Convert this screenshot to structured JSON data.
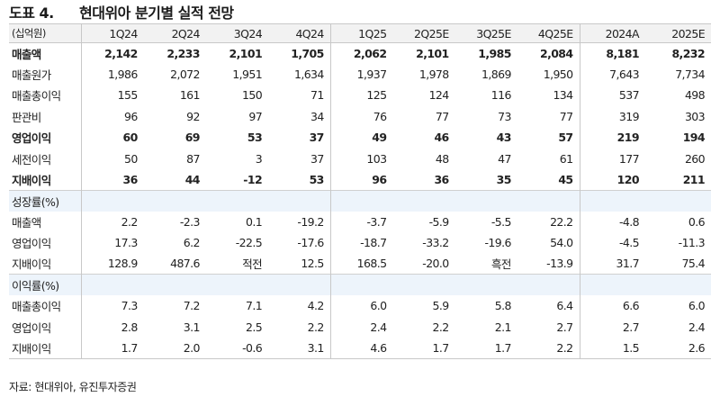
{
  "title": {
    "number": "도표 4.",
    "text": "현대위아 분기별 실적 전망"
  },
  "table": {
    "unit_label": "(십억원)",
    "columns": [
      "1Q24",
      "2Q24",
      "3Q24",
      "4Q24",
      "1Q25",
      "2Q25E",
      "3Q25E",
      "4Q25E",
      "2024A",
      "2025E"
    ],
    "rows": [
      {
        "label": "매출액",
        "bold": true,
        "values": [
          "2,142",
          "2,233",
          "2,101",
          "1,705",
          "2,062",
          "2,101",
          "1,985",
          "2,084",
          "8,181",
          "8,232"
        ]
      },
      {
        "label": "매출원가",
        "bold": false,
        "values": [
          "1,986",
          "2,072",
          "1,951",
          "1,634",
          "1,937",
          "1,978",
          "1,869",
          "1,950",
          "7,643",
          "7,734"
        ]
      },
      {
        "label": "매출총이익",
        "bold": false,
        "values": [
          "155",
          "161",
          "150",
          "71",
          "125",
          "124",
          "116",
          "134",
          "537",
          "498"
        ]
      },
      {
        "label": "판관비",
        "bold": false,
        "values": [
          "96",
          "92",
          "97",
          "34",
          "76",
          "77",
          "73",
          "77",
          "319",
          "303"
        ]
      },
      {
        "label": "영업이익",
        "bold": true,
        "values": [
          "60",
          "69",
          "53",
          "37",
          "49",
          "46",
          "43",
          "57",
          "219",
          "194"
        ]
      },
      {
        "label": "세전이익",
        "bold": false,
        "values": [
          "50",
          "87",
          "3",
          "37",
          "103",
          "48",
          "47",
          "61",
          "177",
          "260"
        ]
      },
      {
        "label": "지배이익",
        "bold": true,
        "values": [
          "36",
          "44",
          "-12",
          "53",
          "96",
          "36",
          "35",
          "45",
          "120",
          "211"
        ]
      }
    ],
    "growth_section": {
      "label": "성장률(%)",
      "rows": [
        {
          "label": "매출액",
          "values": [
            "2.2",
            "-2.3",
            "0.1",
            "-19.2",
            "-3.7",
            "-5.9",
            "-5.5",
            "22.2",
            "-4.8",
            "0.6"
          ]
        },
        {
          "label": "영업이익",
          "values": [
            "17.3",
            "6.2",
            "-22.5",
            "-17.6",
            "-18.7",
            "-33.2",
            "-19.6",
            "54.0",
            "-4.5",
            "-11.3"
          ]
        },
        {
          "label": "지배이익",
          "values": [
            "128.9",
            "487.6",
            "적전",
            "12.5",
            "168.5",
            "-20.0",
            "흑전",
            "-13.9",
            "31.7",
            "75.4"
          ]
        }
      ]
    },
    "margin_section": {
      "label": "이익률(%)",
      "rows": [
        {
          "label": "매출총이익",
          "values": [
            "7.3",
            "7.2",
            "7.1",
            "4.2",
            "6.0",
            "5.9",
            "5.8",
            "6.4",
            "6.6",
            "6.0"
          ]
        },
        {
          "label": "영업이익",
          "values": [
            "2.8",
            "3.1",
            "2.5",
            "2.2",
            "2.4",
            "2.2",
            "2.1",
            "2.7",
            "2.7",
            "2.4"
          ]
        },
        {
          "label": "지배이익",
          "values": [
            "1.7",
            "2.0",
            "-0.6",
            "3.1",
            "4.6",
            "1.7",
            "1.7",
            "2.2",
            "1.5",
            "2.6"
          ]
        }
      ]
    }
  },
  "source": "자료: 현대위아, 유진투자증권",
  "colors": {
    "header_bg": "#f2f2f2",
    "section_bg": "#edf4fb",
    "border": "#c8c8c8"
  }
}
